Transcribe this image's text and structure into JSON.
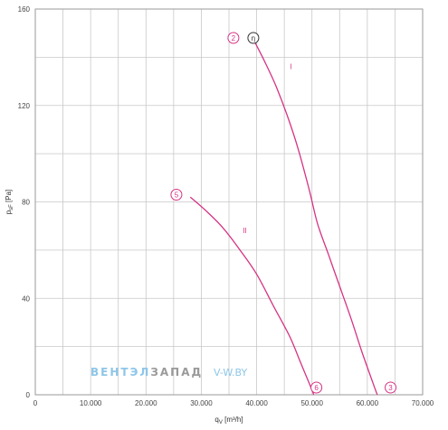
{
  "chart_data": {
    "type": "line",
    "xlabel": "q",
    "xlabel_sub": "V",
    "xlabel_unit": "[m³/h]",
    "ylabel": "p",
    "ylabel_sub": "sF",
    "ylabel_unit": "[Pa]",
    "xlim": [
      0,
      70000
    ],
    "ylim": [
      0,
      160
    ],
    "x_ticks": [
      0,
      10000,
      20000,
      30000,
      40000,
      50000,
      60000,
      70000
    ],
    "x_tick_labels": [
      "0",
      "10.000",
      "20.000",
      "30.000",
      "40.000",
      "50.000",
      "60.000",
      "70.000"
    ],
    "y_ticks": [
      0,
      40,
      80,
      120,
      160
    ],
    "y_tick_labels": [
      "0",
      "40",
      "80",
      "120",
      "160"
    ],
    "grid": true,
    "curve_color": "#d63384",
    "series": [
      {
        "label": "I",
        "label_at": [
          46000,
          135
        ],
        "points": [
          [
            39500,
            147
          ],
          [
            41500,
            138
          ],
          [
            43500,
            128
          ],
          [
            45500,
            116
          ],
          [
            47500,
            102
          ],
          [
            49500,
            85
          ],
          [
            51000,
            71
          ],
          [
            53000,
            58
          ],
          [
            55000,
            45
          ],
          [
            57000,
            32
          ],
          [
            59000,
            18
          ],
          [
            61000,
            5
          ],
          [
            61800,
            0
          ]
        ]
      },
      {
        "label": "II",
        "label_at": [
          37500,
          67
        ],
        "points": [
          [
            28000,
            82
          ],
          [
            31000,
            76
          ],
          [
            34000,
            69
          ],
          [
            37000,
            60
          ],
          [
            40000,
            50
          ],
          [
            43000,
            37
          ],
          [
            46000,
            24
          ],
          [
            48000,
            13
          ],
          [
            50000,
            2
          ],
          [
            50300,
            0
          ]
        ]
      }
    ],
    "markers": [
      {
        "text": "2",
        "x": 35800,
        "y": 148
      },
      {
        "text": "η",
        "x": 39400,
        "y": 148
      },
      {
        "text": "5",
        "x": 25500,
        "y": 83
      },
      {
        "text": "6",
        "x": 50800,
        "y": 3
      },
      {
        "text": "3",
        "x": 64200,
        "y": 3
      }
    ]
  },
  "watermark": {
    "part1": "ВЕНТЭЛ",
    "part2": "ЗАПАД",
    "part3": "V-W.BY",
    "color1": "#8ec6e8",
    "color2": "#9a9a9a"
  }
}
